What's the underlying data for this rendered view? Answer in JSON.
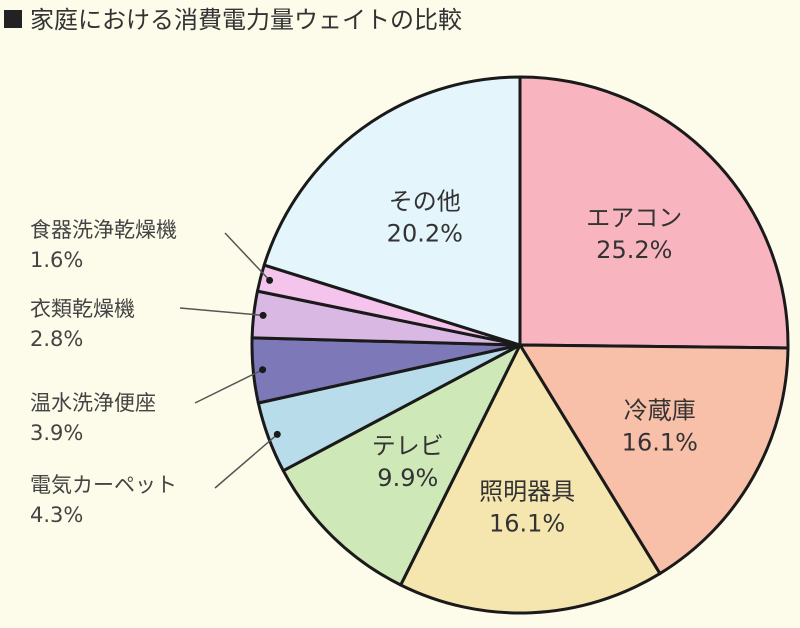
{
  "chart_data": {
    "type": "pie",
    "title": "家庭における消費電力量ウェイトの比較",
    "unit": "%",
    "slices": [
      {
        "label": "エアコン",
        "value": 25.2,
        "display": "25.2%",
        "color": "#f8b5c0",
        "label_placement": "inside"
      },
      {
        "label": "冷蔵庫",
        "value": 16.1,
        "display": "16.1%",
        "color": "#f8c0a8",
        "label_placement": "inside"
      },
      {
        "label": "照明器具",
        "value": 16.1,
        "display": "16.1%",
        "color": "#f5e6b0",
        "label_placement": "inside"
      },
      {
        "label": "テレビ",
        "value": 9.9,
        "display": "9.9%",
        "color": "#cfe8b8",
        "label_placement": "inside"
      },
      {
        "label": "電気カーペット",
        "value": 4.3,
        "display": "4.3%",
        "color": "#b8dcea",
        "label_placement": "outside"
      },
      {
        "label": "温水洗浄便座",
        "value": 3.9,
        "display": "3.9%",
        "color": "#7d78b8",
        "label_placement": "outside"
      },
      {
        "label": "衣類乾燥機",
        "value": 2.8,
        "display": "2.8%",
        "color": "#d9b8e3",
        "label_placement": "outside"
      },
      {
        "label": "食器洗浄乾燥機",
        "value": 1.6,
        "display": "1.6%",
        "color": "#f4c4ec",
        "label_placement": "outside"
      },
      {
        "label": "その他",
        "value": 20.2,
        "display": "20.2%",
        "color": "#e4f6fc",
        "label_placement": "inside"
      }
    ],
    "start": "12 o'clock, clockwise",
    "legend": "none"
  }
}
